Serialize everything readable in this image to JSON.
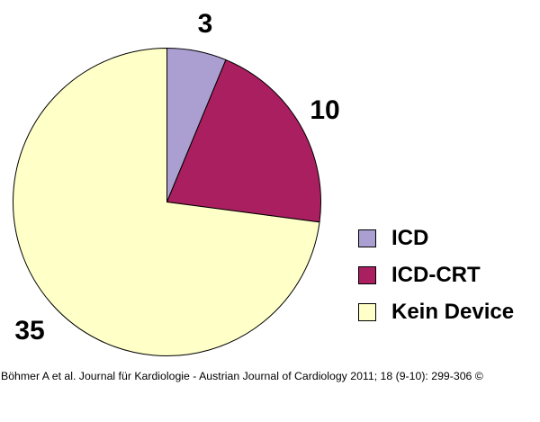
{
  "chart_data": {
    "type": "pie",
    "slices": [
      {
        "label": "ICD",
        "value": 3,
        "color": "#ab9fd2"
      },
      {
        "label": "ICD-CRT",
        "value": 10,
        "color": "#a91f5f"
      },
      {
        "label": "Kein Device",
        "value": 35,
        "color": "#ffffc8"
      }
    ],
    "legend_position": "right",
    "start_angle_deg": 0,
    "direction": "clockwise"
  },
  "caption": "Böhmer A et al. Journal für Kardiologie - Austrian Journal of Cardiology 2011; 18 (9-10): 299-306 ©"
}
